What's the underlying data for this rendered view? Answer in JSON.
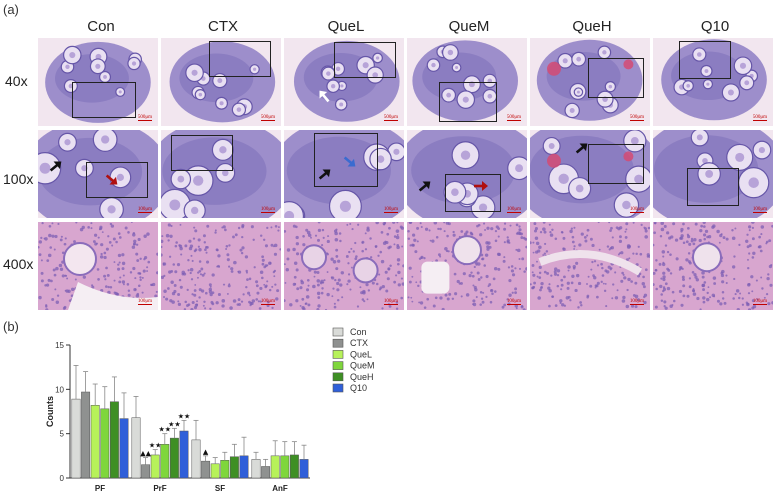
{
  "panel_a": {
    "label": "(a)",
    "columns": [
      "Con",
      "CTX",
      "QueL",
      "QueM",
      "QueH",
      "Q10"
    ],
    "rows": [
      "40x",
      "100x",
      "400x"
    ],
    "scale_labels": {
      "40x": "500μm",
      "100x": "100μm",
      "400x": "100μm"
    }
  },
  "panel_b": {
    "label": "(b)"
  },
  "colors": {
    "Con": "#d9dbd8",
    "CTX": "#8f9190",
    "QueL": "#b7f25a",
    "QueM": "#7fd63c",
    "QueH": "#3e8f24",
    "Q10": "#2f5fd9",
    "tissue_bg": "#f2e6ef",
    "stain_purple": "#8e7ec4",
    "stain_pink": "#d8a6cf"
  },
  "chart_data": {
    "type": "bar",
    "categories": [
      "PF",
      "PrF",
      "SF",
      "AnF"
    ],
    "ylabel": "Counts",
    "ylim": [
      0,
      15
    ],
    "yticks": [
      0,
      5,
      10,
      15
    ],
    "legend_position": "right",
    "series": [
      {
        "name": "Con",
        "values": [
          8.9,
          6.8,
          4.3,
          2.1
        ],
        "errors": [
          3.8,
          2.4,
          2.2,
          0.8
        ]
      },
      {
        "name": "CTX",
        "values": [
          9.7,
          1.5,
          1.9,
          1.3
        ],
        "errors": [
          2.3,
          0.8,
          0.6,
          0.8
        ]
      },
      {
        "name": "QueL",
        "values": [
          8.2,
          2.6,
          1.6,
          2.5
        ],
        "errors": [
          2.4,
          0.6,
          0.7,
          1.7
        ]
      },
      {
        "name": "QueM",
        "values": [
          7.8,
          3.8,
          2.0,
          2.5
        ],
        "errors": [
          2.5,
          1.2,
          0.9,
          1.6
        ]
      },
      {
        "name": "QueH",
        "values": [
          8.6,
          4.5,
          2.4,
          2.6
        ],
        "errors": [
          2.8,
          1.1,
          1.4,
          1.5
        ]
      },
      {
        "name": "Q10",
        "values": [
          6.7,
          5.3,
          2.5,
          2.1
        ],
        "errors": [
          2.9,
          1.2,
          2.1,
          1.6
        ]
      }
    ],
    "significance": [
      {
        "category": "PrF",
        "series": "CTX",
        "marker": "▲▲"
      },
      {
        "category": "PrF",
        "series": "QueL",
        "marker": "★★"
      },
      {
        "category": "PrF",
        "series": "QueM",
        "marker": "★★"
      },
      {
        "category": "PrF",
        "series": "QueH",
        "marker": "★★"
      },
      {
        "category": "PrF",
        "series": "Q10",
        "marker": "★★"
      },
      {
        "category": "SF",
        "series": "CTX",
        "marker": "▲"
      }
    ]
  }
}
